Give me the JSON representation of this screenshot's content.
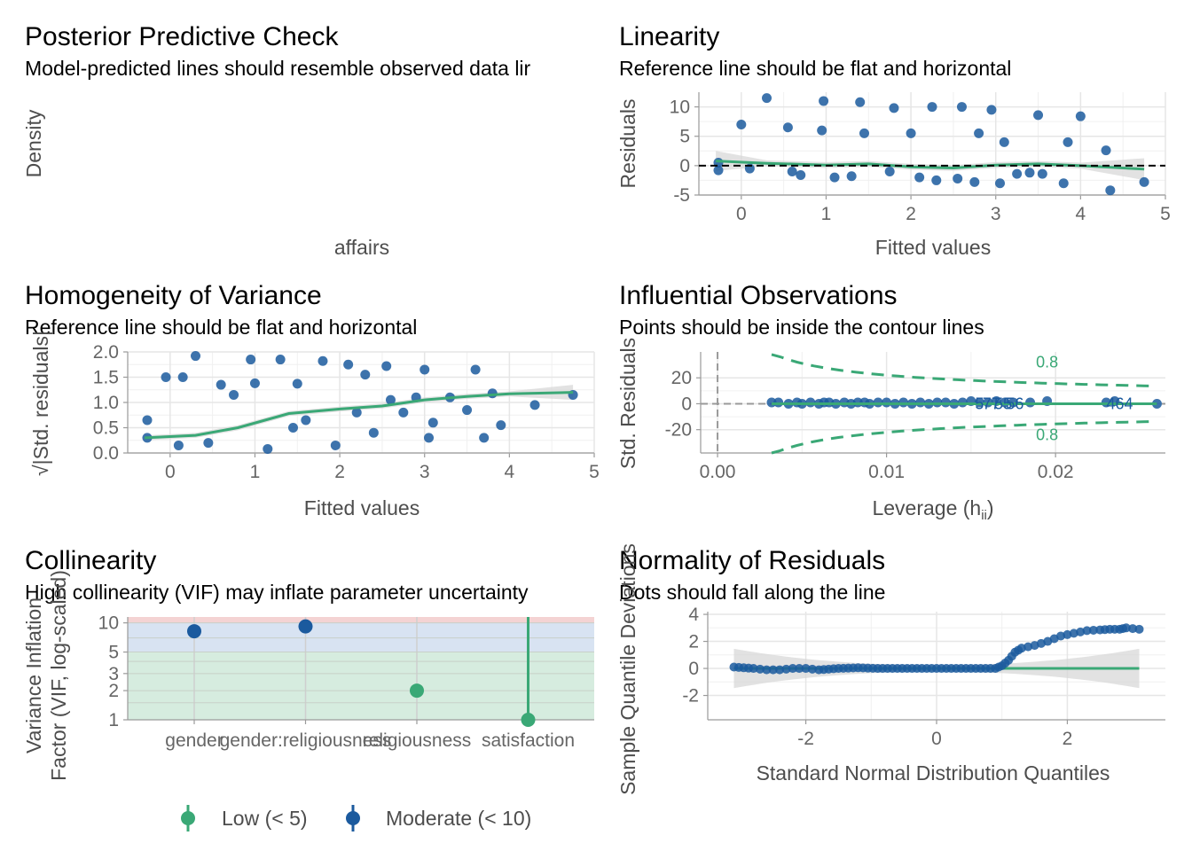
{
  "colors": {
    "green": "#3aa876",
    "blue": "#1b5a9e",
    "grid": "#e6e6e6",
    "axis": "#9a9a9a",
    "ribbon": "#d5d5d5",
    "red_band": "#f4d3d3",
    "blue_band": "#d8e3f2",
    "green_band": "#d6ecdf"
  },
  "ppc": {
    "title": "Posterior Predictive Check",
    "subtitle": "Model-predicted lines should resemble observed data lir",
    "ylabel": "Density",
    "xlabel": "affairs"
  },
  "linearity": {
    "title": "Linearity",
    "subtitle": "Reference line should be flat and horizontal",
    "ylabel": "Residuals",
    "xlabel": "Fitted values"
  },
  "homog": {
    "title": "Homogeneity of Variance",
    "subtitle": "Reference line should be flat and horizontal",
    "ylabel": "√|Std. residuals|",
    "xlabel": "Fitted values"
  },
  "influ": {
    "title": "Influential Observations",
    "subtitle": "Points should be inside the contour lines",
    "ylabel": "Std. Residuals",
    "xlabel": "Leverage (h",
    "xlabel_sub": "ii",
    "xlabel_end": ")",
    "contour_top": "0.8",
    "contour_bottom": "0.8",
    "point_labels": [
      "5",
      "77",
      "55",
      "56",
      "464"
    ]
  },
  "collin": {
    "title": "Collinearity",
    "subtitle": "High collinearity (VIF) may inflate parameter uncertainty",
    "ylabel_line1": "Variance Inflation",
    "ylabel_line2": "Factor (VIF, log-scaled)",
    "legend": [
      {
        "label": "Low (< 5)",
        "color": "green"
      },
      {
        "label": "Moderate (< 10)",
        "color": "blue"
      }
    ]
  },
  "normal": {
    "title": "Normality of Residuals",
    "subtitle": "Dots should fall along the line",
    "ylabel": "Sample Quantile Deviations",
    "xlabel": "Standard Normal Distribution Quantiles"
  },
  "chart_data": [
    {
      "type": "line",
      "panel": "Posterior Predictive Check",
      "xlabel": "affairs",
      "ylabel": "Density",
      "series": []
    },
    {
      "type": "scatter",
      "panel": "Linearity",
      "xlabel": "Fitted values",
      "ylabel": "Residuals",
      "xlim": [
        -0.5,
        5
      ],
      "ylim": [
        -5,
        12.5
      ],
      "xticks": [
        0,
        1,
        2,
        3,
        4,
        5
      ],
      "yticks": [
        -5,
        0,
        5,
        10
      ],
      "reference_y": 0,
      "smooth": [
        [
          -0.3,
          0.8
        ],
        [
          0.3,
          0.4
        ],
        [
          1,
          0.1
        ],
        [
          1.5,
          0.3
        ],
        [
          2,
          -0.2
        ],
        [
          2.5,
          -0.4
        ],
        [
          3,
          0.1
        ],
        [
          3.5,
          0.3
        ],
        [
          4,
          0
        ],
        [
          4.75,
          -0.6
        ]
      ],
      "points_x": [
        -0.27,
        -0.27,
        0,
        0.1,
        0.3,
        0.55,
        0.6,
        0.7,
        0.95,
        0.97,
        1.1,
        1.3,
        1.4,
        1.45,
        1.75,
        1.8,
        2,
        2.1,
        2.25,
        2.3,
        2.55,
        2.6,
        2.75,
        2.8,
        2.95,
        3.05,
        3.1,
        3.25,
        3.4,
        3.5,
        3.55,
        3.8,
        3.85,
        4,
        4.3,
        4.35,
        4.75
      ],
      "points_y": [
        0.5,
        -0.8,
        7,
        -0.5,
        11.5,
        6.5,
        -1,
        -1.6,
        6,
        11,
        -2,
        -1.8,
        10.8,
        5.5,
        -1,
        9.8,
        5.5,
        -2,
        10,
        -2.5,
        -2.2,
        10,
        -2.8,
        5.5,
        9.5,
        -3,
        4,
        -1.4,
        -1.2,
        8.6,
        -1.4,
        -3,
        4,
        8.4,
        2.6,
        -4.2,
        -2.8
      ]
    },
    {
      "type": "scatter",
      "panel": "Homogeneity of Variance",
      "xlabel": "Fitted values",
      "ylabel": "√|Std. residuals|",
      "xlim": [
        -0.5,
        5
      ],
      "ylim": [
        0,
        2
      ],
      "xticks": [
        0,
        1,
        2,
        3,
        4,
        5
      ],
      "yticks": [
        0,
        0.5,
        1,
        1.5,
        2
      ],
      "smooth": [
        [
          -0.3,
          0.3
        ],
        [
          0.3,
          0.35
        ],
        [
          0.8,
          0.5
        ],
        [
          1.4,
          0.78
        ],
        [
          2,
          0.87
        ],
        [
          2.5,
          0.93
        ],
        [
          3,
          1.05
        ],
        [
          3.5,
          1.12
        ],
        [
          4,
          1.17
        ],
        [
          4.75,
          1.2
        ]
      ],
      "points_x": [
        -0.27,
        -0.27,
        -0.05,
        0.1,
        0.15,
        0.3,
        0.45,
        0.6,
        0.75,
        0.95,
        1,
        1.15,
        1.3,
        1.45,
        1.5,
        1.6,
        1.8,
        1.95,
        2.1,
        2.2,
        2.3,
        2.4,
        2.55,
        2.6,
        2.75,
        2.9,
        3,
        3.05,
        3.1,
        3.3,
        3.5,
        3.6,
        3.7,
        3.8,
        3.9,
        4.3,
        4.75
      ],
      "points_y": [
        0.3,
        0.65,
        1.5,
        0.15,
        1.5,
        1.92,
        0.2,
        1.35,
        1.15,
        1.85,
        1.38,
        0.08,
        1.85,
        0.5,
        1.37,
        0.65,
        1.82,
        0.15,
        1.75,
        0.8,
        1.55,
        0.4,
        1.72,
        1.05,
        0.8,
        1.1,
        1.65,
        0.3,
        0.6,
        1.1,
        0.85,
        1.65,
        0.3,
        1.18,
        0.55,
        0.95,
        1.15
      ]
    },
    {
      "type": "scatter",
      "panel": "Influential Observations",
      "xlabel": "Leverage (hii)",
      "ylabel": "Std. Residuals",
      "xlim": [
        -0.001,
        0.0265
      ],
      "ylim": [
        -38,
        40
      ],
      "xticks": [
        0,
        0.01,
        0.02
      ],
      "yticks": [
        -20,
        0,
        20
      ],
      "points_x": [
        0.0032,
        0.0036,
        0.0042,
        0.0047,
        0.005,
        0.0055,
        0.006,
        0.0063,
        0.0066,
        0.007,
        0.0075,
        0.0079,
        0.0083,
        0.0087,
        0.009,
        0.0095,
        0.01,
        0.0105,
        0.011,
        0.0115,
        0.012,
        0.0125,
        0.013,
        0.0135,
        0.014,
        0.0145,
        0.015,
        0.0155,
        0.016,
        0.0165,
        0.017,
        0.0175,
        0.0185,
        0.0195,
        0.023,
        0.0235,
        0.026
      ],
      "points_y": [
        1,
        1,
        0,
        1,
        0,
        1,
        0,
        1,
        1,
        0,
        1,
        0,
        1,
        1,
        0,
        1,
        1,
        0,
        1,
        0,
        1,
        0,
        1,
        1,
        0,
        1,
        2,
        1,
        1,
        2,
        1,
        1,
        1,
        2,
        1,
        2,
        0
      ]
    },
    {
      "type": "scatter",
      "panel": "Collinearity",
      "ylabel": "Variance Inflation Factor (VIF, log-scaled)",
      "categories": [
        "gender",
        "gender:religiousness",
        "religiousness",
        "satisfaction"
      ],
      "values": [
        8.2,
        9.2,
        2.0,
        1.0
      ],
      "groups": [
        "Moderate (< 10)",
        "Moderate (< 10)",
        "Low (< 5)",
        "Low (< 5)"
      ],
      "yticks": [
        1,
        2,
        3,
        5,
        10
      ]
    },
    {
      "type": "scatter",
      "panel": "Normality of Residuals",
      "xlabel": "Standard Normal Distribution Quantiles",
      "ylabel": "Sample Quantile Deviations",
      "xlim": [
        -3.5,
        3.5
      ],
      "ylim": [
        -3.8,
        4.2
      ],
      "xticks": [
        -2,
        0,
        2
      ],
      "yticks": [
        -2,
        0,
        2,
        4
      ],
      "reference_y": 0,
      "qq_x": [
        -3.1,
        -2.8,
        -2.6,
        -2.4,
        -2.2,
        -2,
        -1.8,
        -1.5,
        -1.2,
        -0.9,
        -0.6,
        -0.3,
        0,
        0.3,
        0.6,
        0.9,
        1.0,
        1.1,
        1.2,
        1.3,
        1.5,
        1.7,
        1.9,
        2.1,
        2.3,
        2.5,
        2.65,
        2.8,
        2.9,
        3.1
      ],
      "qq_y": [
        0.1,
        0,
        -0.1,
        -0.1,
        0,
        0,
        -0.1,
        0,
        0.05,
        0,
        0,
        0,
        0,
        0,
        0,
        0,
        0.2,
        0.6,
        1.2,
        1.5,
        1.7,
        2.0,
        2.4,
        2.6,
        2.8,
        2.85,
        2.9,
        2.9,
        3.0,
        2.9
      ]
    }
  ]
}
